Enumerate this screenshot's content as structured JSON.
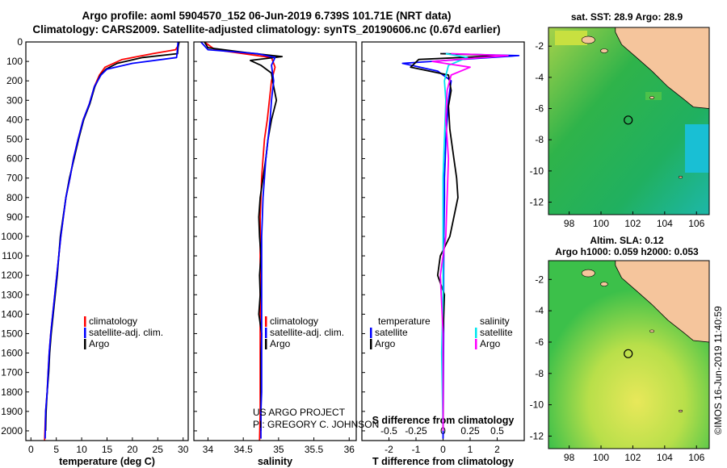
{
  "title_line1": "Argo profile: aoml 5904570_152 06-Jun-2019 6.739S 101.71E (NRT data)",
  "title_line2": "Climatology: CARS2009. Satellite-adjusted climatology: synTS_20190606.nc (0.67d earlier)",
  "colors": {
    "climatology": "#ff0000",
    "satellite": "#0000ff",
    "argo": "#000000",
    "sat_salinity": "#00e5ee",
    "argo_salinity": "#ff00ff",
    "land": "#f5c59c"
  },
  "project_text": {
    "line1": "US ARGO PROJECT",
    "line2": "PI: GREGORY C. JOHNSON"
  },
  "imos_stamp": "©IMOS 16-Jun-2019 11:40:59",
  "chart_data": [
    {
      "type": "line",
      "name": "temperature-profile",
      "xlabel": "temperature (deg C)",
      "ylabel": "",
      "xlim": [
        -1,
        31
      ],
      "ylim": [
        2050,
        0
      ],
      "xticks": [
        0,
        5,
        10,
        15,
        20,
        25,
        30
      ],
      "yticks": [
        0,
        100,
        200,
        300,
        400,
        500,
        600,
        700,
        800,
        900,
        1000,
        1100,
        1200,
        1300,
        1400,
        1500,
        1600,
        1700,
        1800,
        1900,
        2000
      ],
      "legend": [
        "climatology",
        "satellite-adj. clim.",
        "Argo"
      ],
      "series": [
        {
          "name": "climatology",
          "x": [
            29.2,
            29.0,
            28.5,
            24,
            18,
            14.6,
            13.5,
            12.5,
            11.5,
            10.3,
            9.3,
            8.4,
            7.7,
            6.9,
            5.9,
            5.1,
            4.7,
            4.3,
            3.9,
            3.6,
            3.4,
            3.2,
            2.9,
            2.7
          ],
          "y": [
            0,
            20,
            40,
            60,
            90,
            130,
            170,
            230,
            320,
            400,
            500,
            600,
            700,
            800,
            1000,
            1200,
            1300,
            1400,
            1500,
            1600,
            1700,
            1800,
            1900,
            2050
          ]
        },
        {
          "name": "satellite-adj. clim.",
          "x": [
            29.0,
            28.9,
            28.8,
            28.7,
            20,
            15,
            13.8,
            12.5,
            11.5,
            10.3,
            9.3,
            8.4,
            7.7,
            6.9,
            5.9,
            5.1,
            4.7,
            4.3,
            3.9,
            3.6,
            3.4,
            3.2,
            2.9,
            2.8
          ],
          "y": [
            0,
            30,
            60,
            80,
            110,
            140,
            170,
            230,
            320,
            400,
            500,
            600,
            700,
            800,
            1000,
            1200,
            1300,
            1400,
            1500,
            1600,
            1700,
            1800,
            1900,
            2040
          ]
        },
        {
          "name": "Argo",
          "x": [
            29.2,
            29.0,
            28.9,
            22,
            17,
            14.8,
            13.7,
            12.6,
            11.6,
            10.4,
            9.4,
            8.5,
            7.6,
            6.9,
            5.8,
            5.2,
            4.8,
            4.4,
            4.0,
            3.7,
            3.5,
            3.2,
            3.0,
            2.9
          ],
          "y": [
            0,
            30,
            60,
            80,
            110,
            140,
            170,
            230,
            320,
            400,
            500,
            600,
            700,
            800,
            1000,
            1200,
            1300,
            1400,
            1500,
            1600,
            1700,
            1800,
            1900,
            2000
          ]
        }
      ]
    },
    {
      "type": "line",
      "name": "salinity-profile",
      "xlabel": "salinity",
      "ylabel": "",
      "xlim": [
        33.8,
        36.1
      ],
      "ylim": [
        2050,
        0
      ],
      "xticks": [
        34,
        34.5,
        35,
        35.5,
        36
      ],
      "legend": [
        "climatology",
        "satellite-adj. clim.",
        "Argo"
      ],
      "series": [
        {
          "name": "climatology",
          "x": [
            33.95,
            34.1,
            34.5,
            34.9,
            34.95,
            34.9,
            34.87,
            34.84,
            34.8,
            34.78,
            34.76,
            34.75,
            34.74,
            34.74,
            34.74,
            34.74,
            34.74,
            34.74,
            34.74,
            34.73
          ],
          "y": [
            0,
            40,
            60,
            80,
            130,
            200,
            300,
            400,
            500,
            600,
            700,
            800,
            900,
            1000,
            1200,
            1400,
            1600,
            1800,
            1900,
            2050
          ]
        },
        {
          "name": "satellite-adj. clim.",
          "x": [
            33.9,
            34.0,
            34.7,
            34.95,
            34.9,
            34.93,
            34.9,
            34.88,
            34.85,
            34.82,
            34.8,
            34.78,
            34.77,
            34.76,
            34.76,
            34.76,
            34.76,
            34.76,
            34.75,
            34.75
          ],
          "y": [
            0,
            40,
            60,
            80,
            120,
            200,
            300,
            400,
            500,
            600,
            700,
            800,
            900,
            1000,
            1200,
            1400,
            1600,
            1800,
            1900,
            2040
          ]
        },
        {
          "name": "Argo",
          "x": [
            33.95,
            34.0,
            34.55,
            35.05,
            34.6,
            34.75,
            34.9,
            34.92,
            34.97,
            34.9,
            34.85,
            34.82,
            34.78,
            34.74,
            34.72,
            34.73,
            34.75,
            34.73,
            34.74,
            34.72,
            34.76,
            34.75,
            34.75,
            34.75
          ],
          "y": [
            0,
            30,
            55,
            75,
            95,
            120,
            160,
            210,
            300,
            400,
            500,
            600,
            700,
            800,
            900,
            1000,
            1100,
            1200,
            1300,
            1400,
            1500,
            1600,
            1800,
            2000
          ]
        }
      ]
    },
    {
      "type": "line",
      "name": "difference-from-climatology",
      "xlabel": "T difference from climatology",
      "xlabel_top": "S difference from climatology",
      "xlim": [
        -3,
        3
      ],
      "ylim": [
        2050,
        0
      ],
      "xticks": [
        -2,
        -1,
        0,
        1,
        2
      ],
      "sal_tick_labels": [
        "-0.5",
        "-0.25",
        "0",
        "0.25",
        "0.5"
      ],
      "sal_tick_values": [
        -2,
        -1,
        0,
        1,
        2
      ],
      "legend_temperature_header": "temperature",
      "legend_salinity_header": "salinity",
      "legend": [
        "satellite",
        "Argo",
        "satellite",
        "Argo"
      ],
      "series": [
        {
          "name": "T satellite",
          "x": [
            0,
            2.8,
            -1.5,
            -0.2,
            0.3,
            0.2,
            0.15,
            0.1,
            0.08,
            0.05,
            0.05,
            0.03,
            0.02,
            0.02,
            0.0
          ],
          "y": [
            60,
            70,
            110,
            150,
            200,
            300,
            400,
            500,
            600,
            700,
            800,
            1000,
            1200,
            1500,
            2040
          ]
        },
        {
          "name": "T Argo",
          "x": [
            -0.1,
            2.2,
            -0.9,
            -1.2,
            0.2,
            0.3,
            0.2,
            0.25,
            0.4,
            0.5,
            0.55,
            0.4,
            0.25,
            -0.1,
            -0.2,
            0.05,
            0.0,
            0.0,
            0.0
          ],
          "y": [
            60,
            70,
            90,
            130,
            170,
            250,
            330,
            450,
            600,
            700,
            800,
            900,
            1000,
            1100,
            1200,
            1300,
            1500,
            1800,
            2000
          ]
        },
        {
          "name": "S satellite",
          "x": [
            0.1,
            0.9,
            0.2,
            0.05,
            0.1,
            0.05,
            0.0,
            0.0,
            0.0,
            -0.05,
            0.0
          ],
          "y": [
            60,
            80,
            120,
            200,
            300,
            500,
            700,
            1000,
            1300,
            1600,
            2000
          ]
        },
        {
          "name": "S Argo",
          "x": [
            0.3,
            2.4,
            -0.4,
            1.0,
            0.3,
            0.15,
            0.1,
            0.2,
            0.15,
            0.1,
            -0.1,
            0.0,
            0.0
          ],
          "y": [
            60,
            70,
            100,
            130,
            170,
            250,
            400,
            600,
            800,
            1000,
            1200,
            1500,
            2000
          ]
        }
      ]
    },
    {
      "type": "heatmap",
      "name": "sst-map",
      "title": "sat. SST: 28.9 Argo: 28.9",
      "xticks": [
        98,
        100,
        102,
        104,
        106
      ],
      "yticks": [
        -2,
        -4,
        -6,
        -8,
        -10,
        -12
      ],
      "xlim": [
        96.7,
        106.8
      ],
      "ylim": [
        -12.8,
        -0.8
      ],
      "argo_position": [
        101.71,
        -6.739
      ]
    },
    {
      "type": "heatmap",
      "name": "sla-map",
      "title_line1": "Altim. SLA: 0.12",
      "title_line2": "Argo h1000: 0.059 h2000: 0.053",
      "xticks": [
        98,
        100,
        102,
        104,
        106
      ],
      "yticks": [
        -2,
        -4,
        -6,
        -8,
        -10,
        -12
      ],
      "xlim": [
        96.7,
        106.8
      ],
      "ylim": [
        -12.8,
        -0.8
      ],
      "argo_position": [
        101.71,
        -6.739
      ]
    }
  ]
}
